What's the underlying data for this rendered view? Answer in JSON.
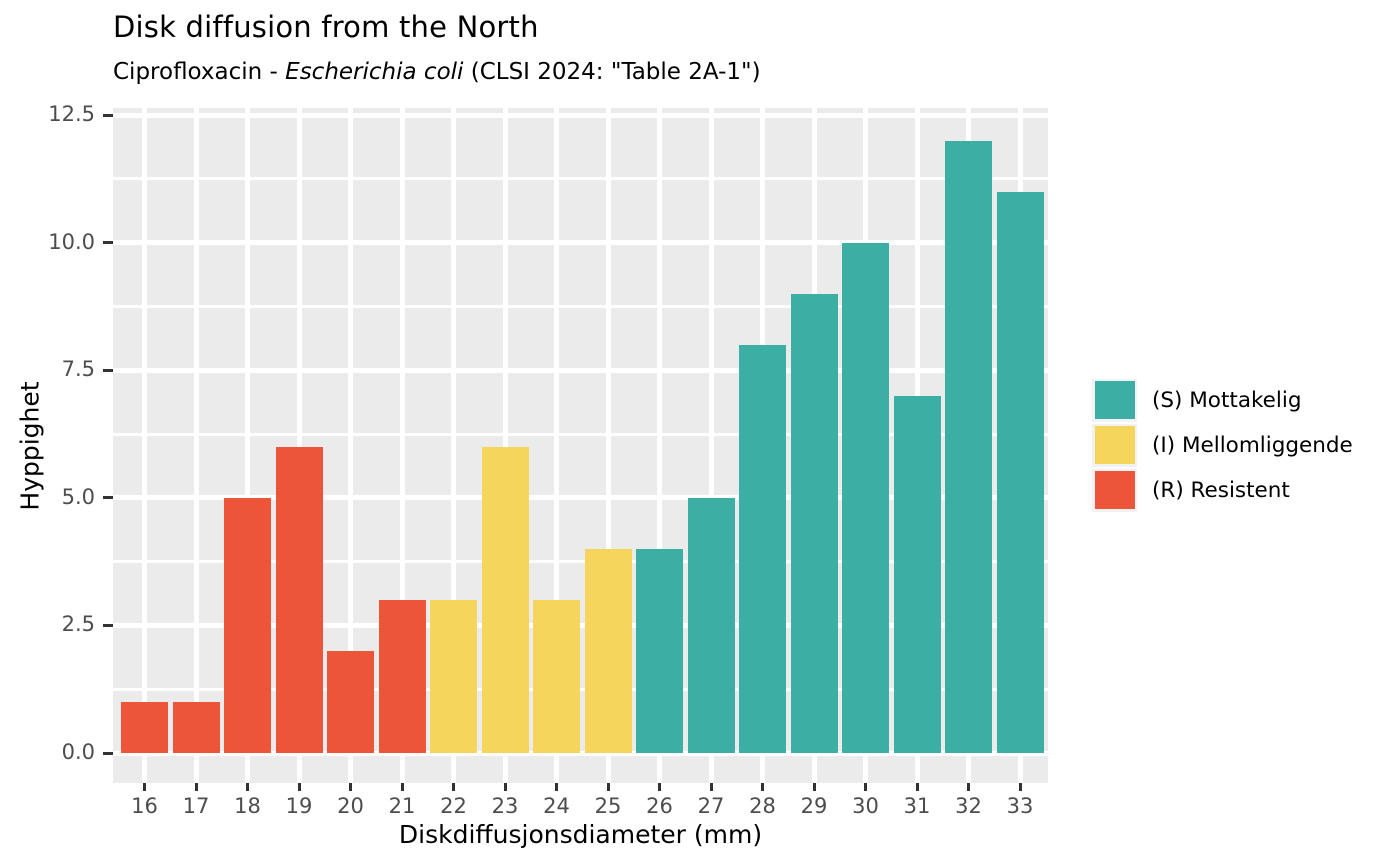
{
  "title": "Disk diffusion from the North",
  "subtitle": {
    "prefix": "Ciprofloxacin - ",
    "italic": "Escherichia coli",
    "suffix": " (CLSI 2024: \"Table 2A-1\")"
  },
  "chart_data": {
    "type": "bar",
    "title": "Disk diffusion from the North",
    "subtitle": "Ciprofloxacin - Escherichia coli (CLSI 2024: \"Table 2A-1\")",
    "xlabel": "Diskdiffusjonsdiameter (mm)",
    "ylabel": "Hyppighet",
    "categories": [
      16,
      17,
      18,
      19,
      20,
      21,
      22,
      23,
      24,
      25,
      26,
      27,
      28,
      29,
      30,
      31,
      32,
      33
    ],
    "values": [
      1,
      1,
      5,
      6,
      2,
      3,
      3,
      6,
      3,
      4,
      4,
      5,
      8,
      9,
      10,
      7,
      12,
      11
    ],
    "category_class": [
      "R",
      "R",
      "R",
      "R",
      "R",
      "R",
      "I",
      "I",
      "I",
      "I",
      "S",
      "S",
      "S",
      "S",
      "S",
      "S",
      "S",
      "S"
    ],
    "y_ticks": [
      0.0,
      2.5,
      5.0,
      7.5,
      10.0,
      12.5
    ],
    "y_tick_labels": [
      "0.0",
      "2.5",
      "5.0",
      "7.5",
      "10.0",
      "12.5"
    ],
    "ylim": [
      0,
      12.5
    ],
    "grid": "on",
    "legend_position": "right",
    "legend": [
      {
        "key": "S",
        "label": "(S) Mottakelig",
        "color": "#3CAEA3"
      },
      {
        "key": "I",
        "label": "(I) Mellomliggende",
        "color": "#F6D55C"
      },
      {
        "key": "R",
        "label": "(R) Resistent",
        "color": "#ED553B"
      }
    ],
    "colors": {
      "S": "#3CAEA3",
      "I": "#F6D55C",
      "R": "#ED553B"
    },
    "panel_background": "#EBEBEB",
    "grid_color": "#FFFFFF",
    "tick_color": "#333333",
    "tick_label_color": "#4D4D4D"
  }
}
